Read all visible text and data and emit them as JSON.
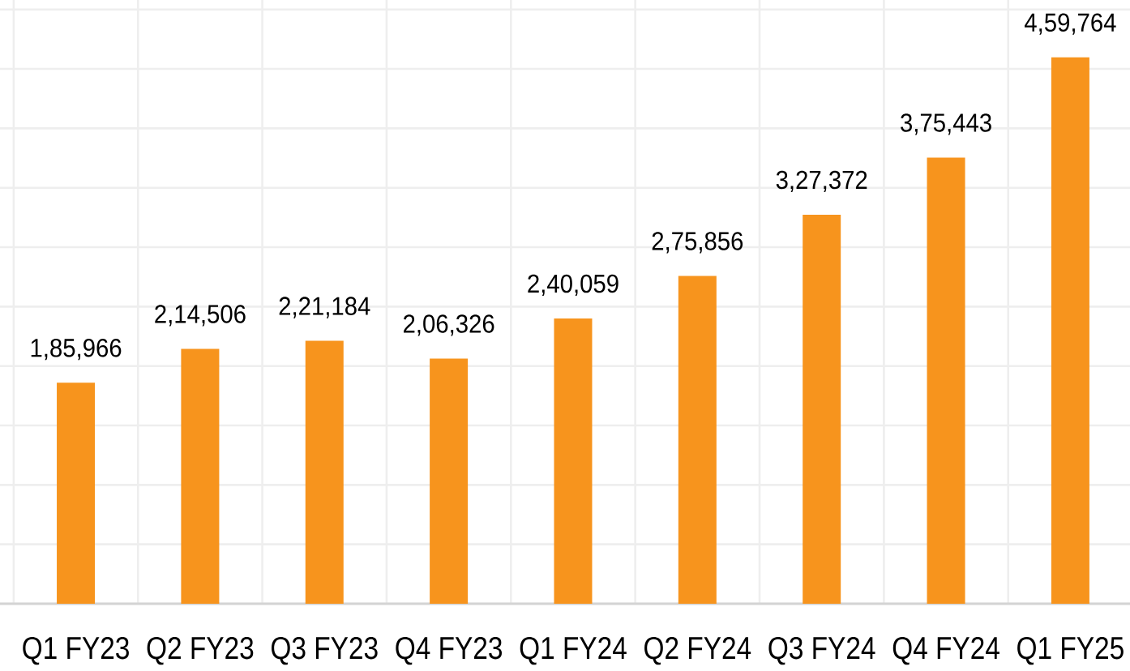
{
  "chart_data": {
    "type": "bar",
    "categories": [
      "Q1 FY23",
      "Q2 FY23",
      "Q3 FY23",
      "Q4 FY23",
      "Q1 FY24",
      "Q2 FY24",
      "Q3 FY24",
      "Q4 FY24",
      "Q1 FY25"
    ],
    "values": [
      185966,
      214506,
      221184,
      206326,
      240059,
      275856,
      327372,
      375443,
      459764
    ],
    "value_labels": [
      "1,85,966",
      "2,14,506",
      "2,21,184",
      "2,06,326",
      "2,40,059",
      "2,75,856",
      "3,27,372",
      "3,75,443",
      "4,59,764"
    ],
    "color": "#f7941d",
    "ylim": [
      0,
      508000
    ],
    "grid": true,
    "tick_labels": "x"
  }
}
